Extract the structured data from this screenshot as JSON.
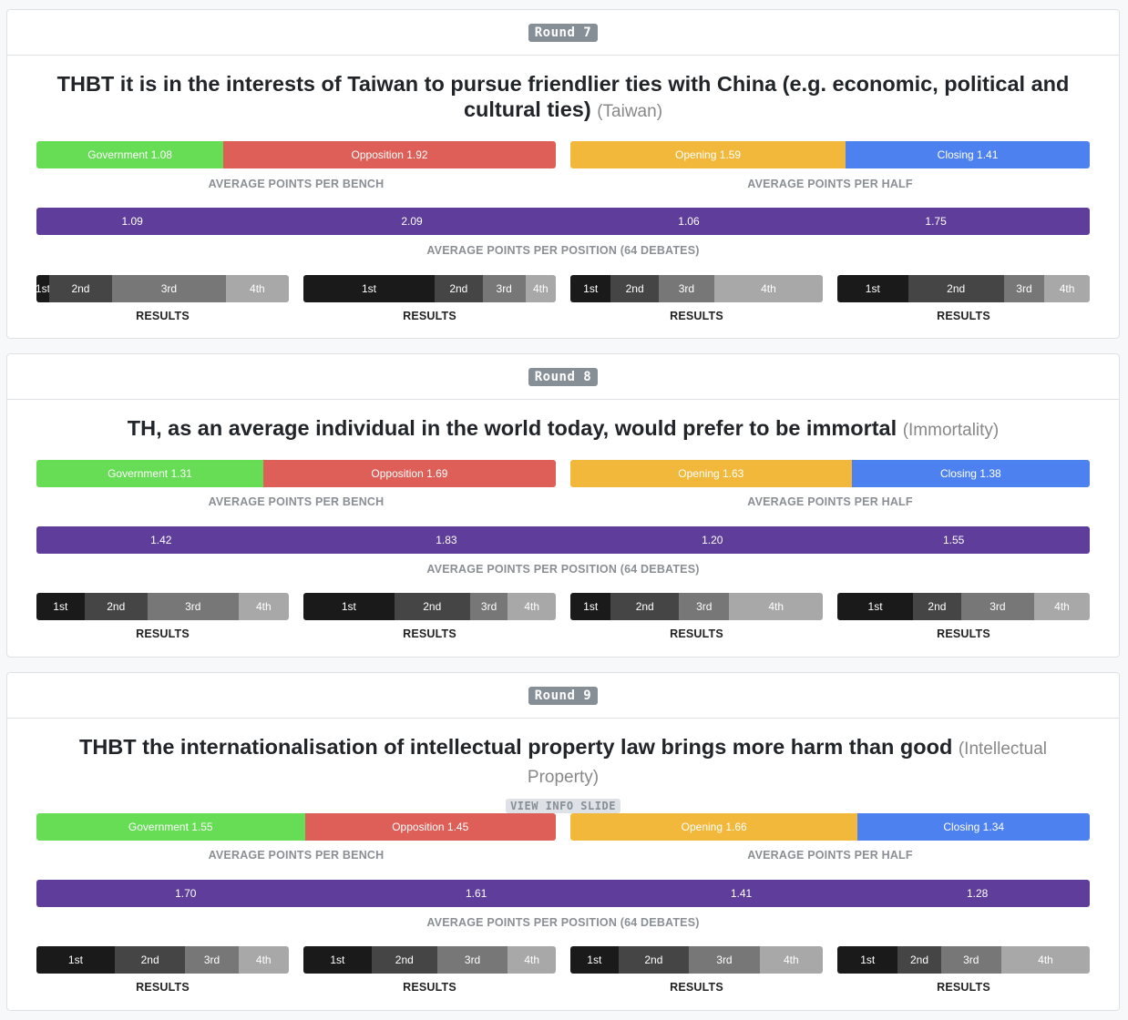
{
  "colors": {
    "government": "#66dd55",
    "opposition": "#dd5f57",
    "opening": "#f2b83c",
    "closing": "#4d81ef",
    "position": "#5e3d9b",
    "results": [
      "#1a1a1a",
      "#454545",
      "#777777",
      "#a8a8a8"
    ]
  },
  "captions": {
    "bench": "AVERAGE POINTS PER BENCH",
    "half": "AVERAGE POINTS PER HALF",
    "position": "AVERAGE POINTS PER POSITION (64 DEBATES)",
    "results": "RESULTS"
  },
  "rounds": [
    {
      "badge": "Round 7",
      "motion": "THBT it is in the interests of Taiwan to pursue friendlier ties with China (e.g. economic, political and cultural ties)",
      "topic": "(Taiwan)",
      "info_slide": "",
      "bench": {
        "government": "Government 1.08",
        "opposition": "Opposition 1.92"
      },
      "half": {
        "opening": "Opening 1.59",
        "closing": "Closing 1.41"
      },
      "positions": [
        "1.09",
        "2.09",
        "1.06",
        "1.75"
      ],
      "results_labels": [
        "1st",
        "2nd",
        "3rd",
        "4th"
      ]
    },
    {
      "badge": "Round 8",
      "motion": "TH, as an average individual in the world today, would prefer to be immortal",
      "topic": "(Immortality)",
      "info_slide": "",
      "bench": {
        "government": "Government 1.31",
        "opposition": "Opposition 1.69"
      },
      "half": {
        "opening": "Opening 1.63",
        "closing": "Closing 1.38"
      },
      "positions": [
        "1.42",
        "1.83",
        "1.20",
        "1.55"
      ],
      "results_labels": [
        "1st",
        "2nd",
        "3rd",
        "4th"
      ]
    },
    {
      "badge": "Round 9",
      "motion": "THBT the internationalisation of intellectual property law brings more harm than good",
      "topic": "(Intellectual Property)",
      "info_slide": "VIEW INFO SLIDE",
      "bench": {
        "government": "Government 1.55",
        "opposition": "Opposition 1.45"
      },
      "half": {
        "opening": "Opening 1.66",
        "closing": "Closing 1.34"
      },
      "positions": [
        "1.70",
        "1.61",
        "1.41",
        "1.28"
      ],
      "results_labels": [
        "1st",
        "2nd",
        "3rd",
        "4th"
      ]
    }
  ],
  "chart_data": [
    {
      "type": "bar",
      "round": "Round 7",
      "bench": {
        "government": 1.08,
        "opposition": 1.92
      },
      "half": {
        "opening": 1.59,
        "closing": 1.41
      },
      "positions": [
        1.09,
        2.09,
        1.06,
        1.75
      ],
      "results_share_percent": [
        [
          5,
          25,
          45,
          25
        ],
        [
          52,
          19,
          17,
          12
        ],
        [
          16,
          19,
          22,
          43
        ],
        [
          28,
          38,
          16,
          18
        ]
      ]
    },
    {
      "type": "bar",
      "round": "Round 8",
      "bench": {
        "government": 1.31,
        "opposition": 1.69
      },
      "half": {
        "opening": 1.63,
        "closing": 1.38
      },
      "positions": [
        1.42,
        1.83,
        1.2,
        1.55
      ],
      "results_share_percent": [
        [
          19,
          25,
          36,
          20
        ],
        [
          36,
          30,
          15,
          19
        ],
        [
          16,
          27,
          20,
          37
        ],
        [
          30,
          19,
          29,
          22
        ]
      ]
    },
    {
      "type": "bar",
      "round": "Round 9",
      "bench": {
        "government": 1.55,
        "opposition": 1.45
      },
      "half": {
        "opening": 1.66,
        "closing": 1.34
      },
      "positions": [
        1.7,
        1.61,
        1.41,
        1.28
      ],
      "results_share_percent": [
        [
          31,
          28,
          21,
          20
        ],
        [
          27,
          26,
          28,
          19
        ],
        [
          19,
          28,
          28,
          25
        ],
        [
          24,
          17,
          24,
          35
        ]
      ]
    }
  ]
}
